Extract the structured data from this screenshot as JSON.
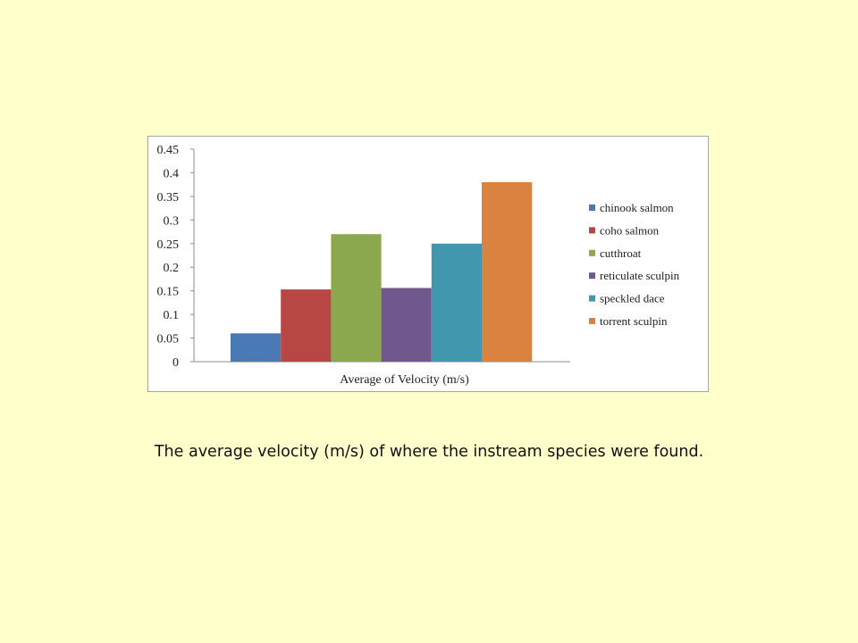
{
  "caption": "The average velocity (m/s) of where the instream species were found.",
  "chart_data": {
    "type": "bar",
    "xlabel": "Average of Velocity (m/s)",
    "ylabel": "",
    "ylim": [
      0,
      0.45
    ],
    "yticks": [
      "0",
      "0.05",
      "0.1",
      "0.15",
      "0.2",
      "0.25",
      "0.3",
      "0.35",
      "0.4",
      "0.45"
    ],
    "grid": false,
    "legend_position": "right",
    "series": [
      {
        "name": "chinook salmon",
        "color": "#4a7ab5",
        "values": [
          0.06
        ]
      },
      {
        "name": "coho salmon",
        "color": "#b84645",
        "values": [
          0.153
        ]
      },
      {
        "name": "cutthroat",
        "color": "#8ba84e",
        "values": [
          0.27
        ]
      },
      {
        "name": "reticulate sculpin",
        "color": "#70588f",
        "values": [
          0.156
        ]
      },
      {
        "name": "speckled dace",
        "color": "#4197ae",
        "values": [
          0.25
        ]
      },
      {
        "name": "torrent sculpin",
        "color": "#da8340",
        "values": [
          0.38
        ]
      }
    ]
  }
}
